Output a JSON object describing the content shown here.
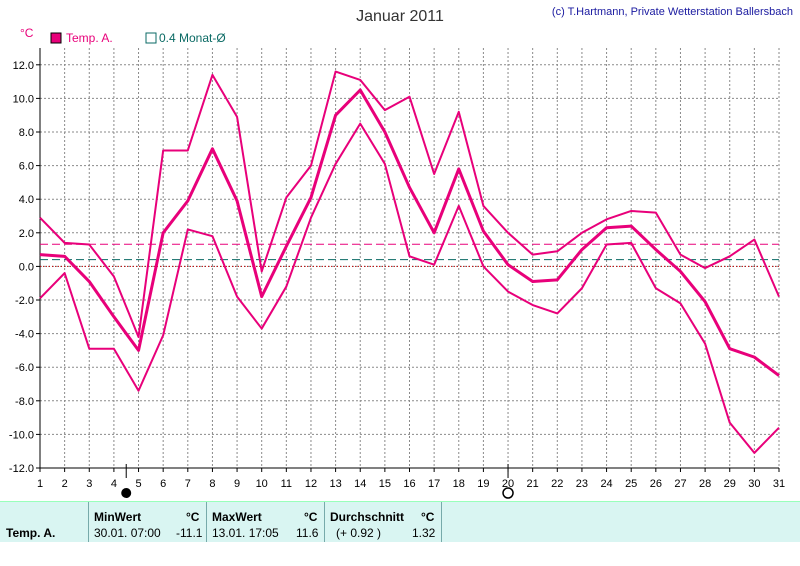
{
  "header": {
    "title": "Januar 2011",
    "credit": "(c) T.Hartmann, Private Wetterstation Ballersbach",
    "unit": "°C"
  },
  "legend": {
    "temp": "Temp. A.",
    "avg": "0.4 Monat-Ø"
  },
  "moon": {
    "full_day": 4.5,
    "new_day": 20
  },
  "colors": {
    "series": "#e8007a",
    "grid": "#8a8a8a",
    "reference_dashed": "#e8007a",
    "month_avg": "#0a6a64",
    "zero_line": "#cc0000",
    "panel_bg": "#d9f5f2"
  },
  "stats": {
    "row_label": "Temp. A.",
    "min_header": "MinWert",
    "min_unit": "°C",
    "min_date": "30.01.  07:00",
    "min_value": "-11.1",
    "max_header": "MaxWert",
    "max_unit": "°C",
    "max_date": "13.01.  17:05",
    "max_value": "11.6",
    "avg_header": "Durchschnitt",
    "avg_unit": "°C",
    "avg_diff": "(+ 0.92 )",
    "avg_value": "1.32"
  },
  "chart_data": {
    "type": "line",
    "title": "Januar 2011",
    "ylabel": "°C",
    "x": [
      1,
      2,
      3,
      4,
      5,
      6,
      7,
      8,
      9,
      10,
      11,
      12,
      13,
      14,
      15,
      16,
      17,
      18,
      19,
      20,
      21,
      22,
      23,
      24,
      25,
      26,
      27,
      28,
      29,
      30,
      31
    ],
    "ylim": [
      -12,
      13
    ],
    "yticks": [
      -12,
      -10,
      -8,
      -6,
      -4,
      -2,
      0,
      2,
      4,
      6,
      8,
      10,
      12
    ],
    "ytick_labels": [
      "-12.0",
      "-10.0",
      "-8.0",
      "-6.0",
      "-4.0",
      "-2.0",
      "0.0",
      "2.0",
      "4.0",
      "6.0",
      "8.0",
      "10.0",
      "12.0"
    ],
    "grid": true,
    "series": [
      {
        "name": "Temp. A.",
        "role": "mean",
        "values": [
          0.7,
          0.6,
          -0.9,
          -3.0,
          -5.0,
          2.0,
          3.9,
          7.0,
          3.9,
          -1.8,
          1.2,
          4.1,
          9.0,
          10.5,
          8.0,
          4.7,
          2.0,
          5.8,
          2.1,
          0.1,
          -0.9,
          -0.8,
          1.0,
          2.3,
          2.4,
          1.0,
          -0.3,
          -2.1,
          -4.9,
          -5.4,
          -6.5
        ]
      },
      {
        "role": "max",
        "values": [
          2.9,
          1.4,
          1.3,
          -0.6,
          -4.2,
          6.9,
          6.9,
          11.4,
          8.9,
          -0.3,
          4.1,
          6.0,
          11.6,
          11.1,
          9.3,
          10.1,
          5.5,
          9.2,
          3.6,
          2.0,
          0.7,
          0.9,
          2.0,
          2.8,
          3.3,
          3.2,
          0.7,
          -0.1,
          0.6,
          1.6,
          -1.8
        ]
      },
      {
        "role": "min",
        "values": [
          -1.9,
          -0.4,
          -4.9,
          -4.9,
          -7.4,
          -4.1,
          2.2,
          1.8,
          -1.8,
          -3.7,
          -1.2,
          2.9,
          6.1,
          8.5,
          6.1,
          0.6,
          0.1,
          3.6,
          0.0,
          -1.5,
          -2.3,
          -2.8,
          -1.3,
          1.3,
          1.4,
          -1.3,
          -2.2,
          -4.6,
          -9.3,
          -11.1,
          -9.6
        ]
      }
    ],
    "reference_lines": [
      {
        "value": 1.32,
        "style": "dashed"
      },
      {
        "value": 0.4,
        "style": "dashed",
        "label": "0.4 Monat-Ø"
      },
      {
        "value": 0.0,
        "style": "dotted"
      }
    ]
  }
}
